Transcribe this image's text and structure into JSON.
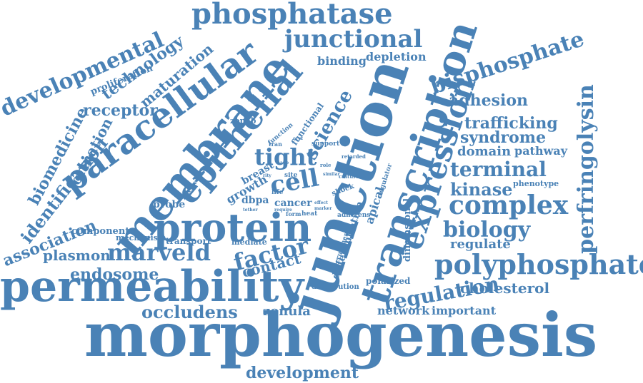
{
  "color": "#4a82b6",
  "words": [
    "morphogenesis",
    "junction",
    "permeability",
    "transcription",
    "membrane",
    "protein",
    "phosphatase",
    "paracellular",
    "epithelial",
    "polyphosphate",
    "expression",
    "junctional",
    "developmental",
    "bisphosphate",
    "perfringolysin",
    "complex",
    "marveld",
    "factor",
    "tight",
    "cell",
    "biology",
    "regulation",
    "terminal",
    "association",
    "identification",
    "biomedicine",
    "occludens",
    "development",
    "endosome",
    "kinase",
    "science",
    "receptor",
    "formation",
    "technology",
    "maturation",
    "adhesion",
    "trafficking",
    "syndrome",
    "domain",
    "pathway",
    "cholesterol",
    "regulate",
    "contact",
    "network",
    "important",
    "zonula",
    "plasmon",
    "binding",
    "depletion",
    "proliferation",
    "transport",
    "component",
    "mechanism",
    "probe",
    "growth",
    "breast",
    "dbpa",
    "cancer",
    "apical",
    "differentiation",
    "dimensional",
    "polarized",
    "mediate",
    "distribution",
    "recruitment",
    "zonab",
    "functional",
    "function",
    "support",
    "intercellular",
    "phenotype",
    "shock",
    "adherens",
    "regulator",
    "site",
    "life",
    "tran",
    "heat",
    "form",
    "role",
    "retarded",
    "culture",
    "similar",
    "effect",
    "marker",
    "tether",
    "require",
    "ago",
    "oryz",
    "rity"
  ]
}
